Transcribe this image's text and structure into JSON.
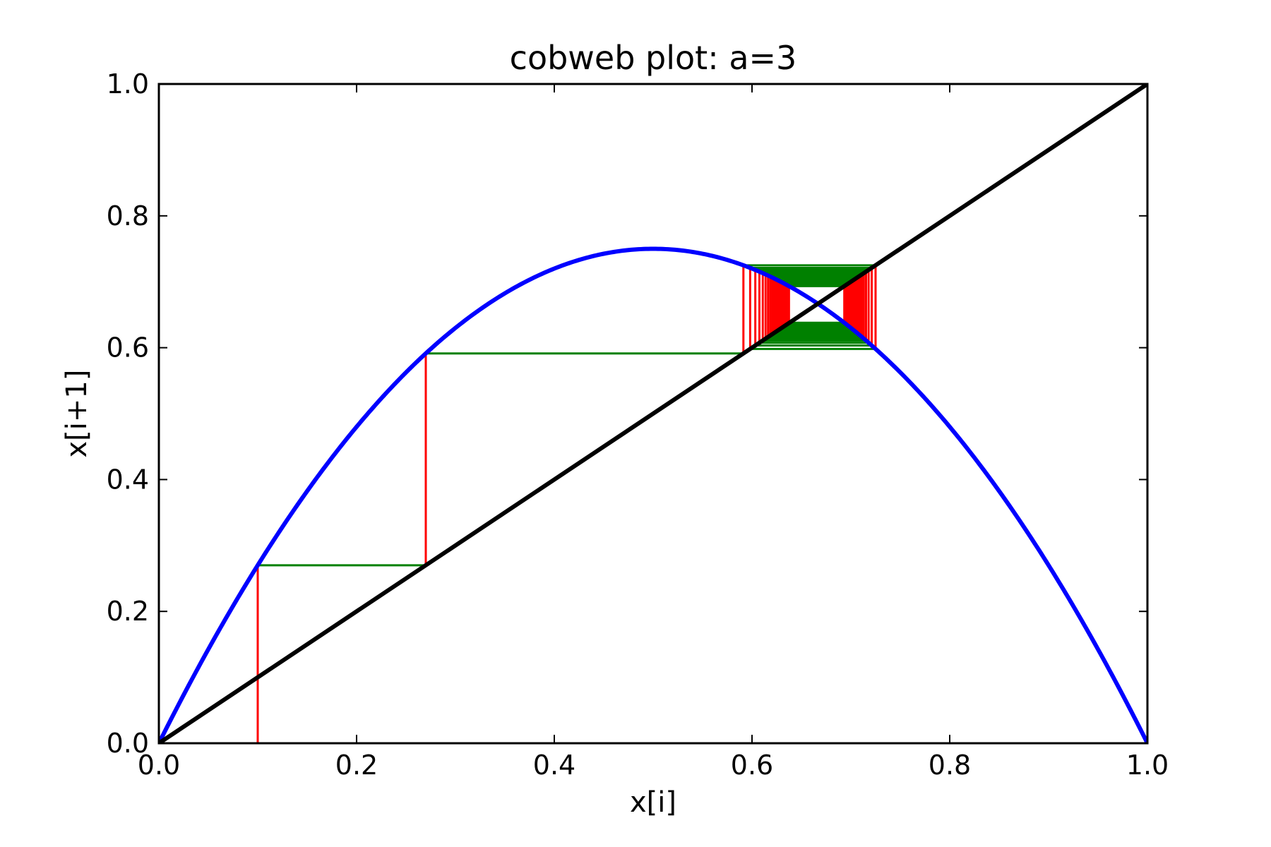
{
  "chart_data": {
    "type": "line",
    "title": "cobweb plot: a=3",
    "xlabel": "x[i]",
    "ylabel": "x[i+1]",
    "xlim": [
      0.0,
      1.0
    ],
    "ylim": [
      0.0,
      1.0
    ],
    "xticks": [
      "0.0",
      "0.2",
      "0.4",
      "0.6",
      "0.8",
      "1.0"
    ],
    "yticks": [
      "0.0",
      "0.2",
      "0.4",
      "0.6",
      "0.8",
      "1.0"
    ],
    "grid": false,
    "legend": "none",
    "map": {
      "function": "logistic",
      "a": 3,
      "x0": 0.1,
      "iterations": 60
    },
    "series": [
      {
        "kind": "curve",
        "color": "#0000ff",
        "x": [
          0.0,
          0.1,
          0.2,
          0.3,
          0.4,
          0.5,
          0.6,
          0.7,
          0.8,
          0.9,
          1.0
        ],
        "y": [
          0.0,
          0.27,
          0.48,
          0.63,
          0.72,
          0.75,
          0.72,
          0.63,
          0.48,
          0.27,
          0.0
        ]
      },
      {
        "kind": "identity",
        "color": "#000000",
        "x": [
          0.0,
          1.0
        ],
        "y": [
          0.0,
          1.0
        ]
      },
      {
        "kind": "cobweb-vertical",
        "color": "#ff0000"
      },
      {
        "kind": "cobweb-horizontal",
        "color": "#008000"
      }
    ]
  }
}
